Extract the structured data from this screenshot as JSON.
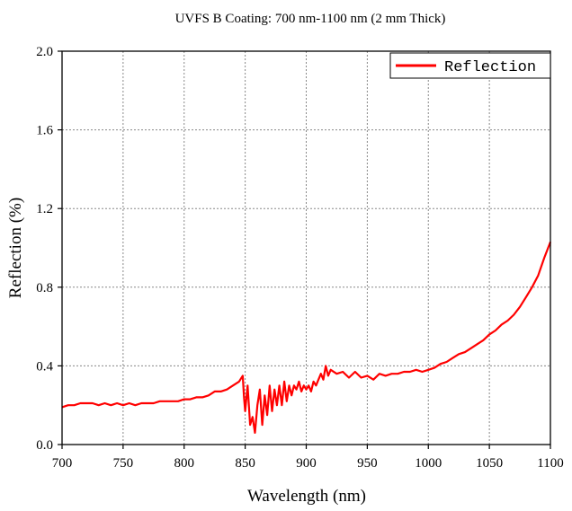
{
  "chart_data": {
    "type": "line",
    "title": "UVFS B Coating: 700 nm-1100 nm (2 mm Thick)",
    "xlabel": "Wavelength (nm)",
    "ylabel": "Reflection (%)",
    "xlim": [
      700,
      1100
    ],
    "ylim": [
      0,
      2.0
    ],
    "xticks": [
      "700",
      "750",
      "800",
      "850",
      "900",
      "950",
      "1000",
      "1050",
      "1100"
    ],
    "yticks": [
      "0.0",
      "0.4",
      "0.8",
      "1.2",
      "1.6",
      "2.0"
    ],
    "grid": true,
    "legend_position": "top-right",
    "series": [
      {
        "name": "Reflection",
        "color": "#ff0000",
        "x": [
          700,
          705,
          710,
          715,
          720,
          725,
          730,
          735,
          740,
          745,
          750,
          755,
          760,
          765,
          770,
          775,
          780,
          785,
          790,
          795,
          800,
          805,
          810,
          815,
          820,
          825,
          830,
          835,
          840,
          845,
          848,
          849,
          850,
          852,
          854,
          856,
          858,
          860,
          862,
          864,
          866,
          868,
          870,
          872,
          874,
          876,
          878,
          880,
          882,
          884,
          886,
          888,
          890,
          892,
          894,
          896,
          898,
          900,
          902,
          904,
          906,
          908,
          910,
          912,
          914,
          916,
          918,
          920,
          925,
          930,
          935,
          940,
          945,
          950,
          955,
          960,
          965,
          970,
          975,
          980,
          985,
          990,
          995,
          1000,
          1005,
          1010,
          1015,
          1020,
          1025,
          1030,
          1035,
          1040,
          1045,
          1050,
          1055,
          1060,
          1065,
          1070,
          1075,
          1080,
          1085,
          1090,
          1095,
          1100
        ],
        "values": [
          0.19,
          0.2,
          0.2,
          0.21,
          0.21,
          0.21,
          0.2,
          0.21,
          0.2,
          0.21,
          0.2,
          0.21,
          0.2,
          0.21,
          0.21,
          0.21,
          0.22,
          0.22,
          0.22,
          0.22,
          0.23,
          0.23,
          0.24,
          0.24,
          0.25,
          0.27,
          0.27,
          0.28,
          0.3,
          0.32,
          0.35,
          0.24,
          0.17,
          0.3,
          0.1,
          0.14,
          0.06,
          0.2,
          0.28,
          0.1,
          0.25,
          0.15,
          0.3,
          0.17,
          0.28,
          0.2,
          0.3,
          0.2,
          0.32,
          0.22,
          0.3,
          0.25,
          0.3,
          0.28,
          0.32,
          0.27,
          0.3,
          0.28,
          0.3,
          0.27,
          0.32,
          0.3,
          0.33,
          0.36,
          0.33,
          0.4,
          0.35,
          0.38,
          0.36,
          0.37,
          0.34,
          0.37,
          0.34,
          0.35,
          0.33,
          0.36,
          0.35,
          0.36,
          0.36,
          0.37,
          0.37,
          0.38,
          0.37,
          0.38,
          0.39,
          0.41,
          0.42,
          0.44,
          0.46,
          0.47,
          0.49,
          0.51,
          0.53,
          0.56,
          0.58,
          0.61,
          0.63,
          0.66,
          0.7,
          0.75,
          0.8,
          0.86,
          0.95,
          1.03
        ]
      }
    ]
  }
}
